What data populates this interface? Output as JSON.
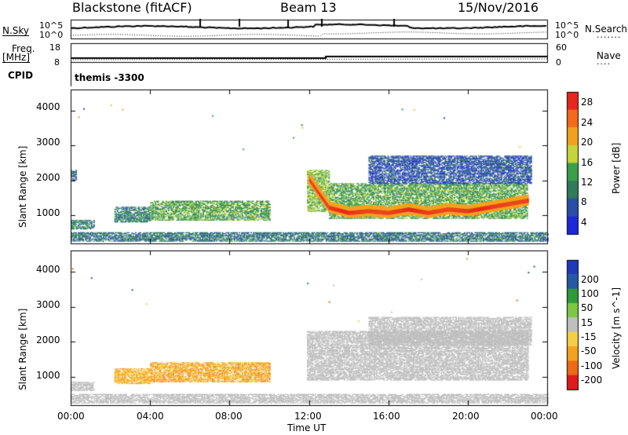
{
  "header": {
    "station": "Blackstone (fitACF)",
    "beam": "Beam 13",
    "date": "15/Nov/2016"
  },
  "top_panels": {
    "nsky_label": "N.Sky",
    "nsky_tick_top": "10^5",
    "nsky_tick_bottom": "10^0",
    "nsearch_label": "N.Search",
    "nsearch_tick_top": "10^5",
    "nsearch_tick_bottom": "10^0",
    "freq_label_1": "Freq.",
    "freq_label_2": "[MHz]",
    "freq_tick_top": "18",
    "freq_tick_bottom": "8",
    "nave_label": "Nave",
    "nave_tick_top": "60",
    "nave_tick_bottom": "0",
    "cpid_label": "CPID",
    "cpid_value": "themis -3300"
  },
  "x_axis": {
    "label": "Time UT",
    "ticks": [
      "00:00",
      "04:00",
      "08:00",
      "12:00",
      "16:00",
      "20:00",
      "00:00"
    ]
  },
  "colors": {
    "power": [
      "#1e28d8",
      "#2a4fa6",
      "#2f7b5c",
      "#3aa04a",
      "#c4d43a",
      "#f0a21e",
      "#f26a1a",
      "#e8281c"
    ],
    "velocity": [
      "#e01b1b",
      "#ee6a16",
      "#f3a21f",
      "#f4cf46",
      "#bfbfbf",
      "#7cc843",
      "#2f9a3c",
      "#245aa4",
      "#1e3cb8"
    ],
    "ground_grey": "#bebebe"
  },
  "chart_data": [
    {
      "type": "heatmap",
      "name": "power",
      "ylabel": "Slant Range [km]",
      "xlabel": "",
      "y_ticks": [
        "1000",
        "2000",
        "3000",
        "4000"
      ],
      "ylim": [
        200,
        4600
      ],
      "xlim_hours": [
        0,
        24
      ],
      "colorbar_label": "Power [dB]",
      "colorbar_ticks": [
        "4",
        "8",
        "12",
        "16",
        "20",
        "24",
        "28"
      ],
      "colorbar_range": [
        0,
        32
      ],
      "regions": [
        {
          "t0": 0.0,
          "t1": 0.25,
          "r0": 2000,
          "r1": 2300,
          "p": 8
        },
        {
          "t0": 0.0,
          "t1": 1.2,
          "r0": 600,
          "r1": 850,
          "p": 10
        },
        {
          "t0": 2.2,
          "t1": 4.0,
          "r0": 800,
          "r1": 1250,
          "p": 10
        },
        {
          "t0": 4.0,
          "t1": 10.0,
          "r0": 850,
          "r1": 1400,
          "p": 14
        },
        {
          "t0": 0.0,
          "t1": 24.0,
          "r0": 250,
          "r1": 500,
          "p": 9
        },
        {
          "t0": 11.9,
          "t1": 13.0,
          "r0": 1100,
          "r1": 2300,
          "p": 16
        },
        {
          "t0": 13.0,
          "t1": 23.0,
          "r0": 900,
          "r1": 1900,
          "p": 14
        },
        {
          "t0": 15.0,
          "t1": 23.2,
          "r0": 1900,
          "r1": 2700,
          "p": 6
        }
      ],
      "ridge_hours": [
        12.0,
        12.5,
        13.0,
        14.0,
        15.0,
        16.0,
        17.0,
        18.0,
        19.0,
        20.0,
        21.0,
        22.0,
        23.0
      ],
      "ridge_range_km": [
        2000,
        1600,
        1200,
        1050,
        1100,
        1050,
        1150,
        1050,
        1150,
        1100,
        1200,
        1300,
        1400
      ]
    },
    {
      "type": "heatmap",
      "name": "velocity",
      "ylabel": "Slant Range [km]",
      "xlabel": "Time UT",
      "y_ticks": [
        "1000",
        "2000",
        "3000",
        "4000"
      ],
      "ylim": [
        200,
        4600
      ],
      "xlim_hours": [
        0,
        24
      ],
      "colorbar_label": "Velocity [m s^-1]",
      "colorbar_ticks": [
        "200",
        "100",
        "50",
        "15",
        "-15",
        "-50",
        "-100",
        "-200"
      ],
      "regions": [
        {
          "t0": 0.0,
          "t1": 1.2,
          "r0": 600,
          "r1": 850,
          "v": 0
        },
        {
          "t0": 2.2,
          "t1": 4.0,
          "r0": 800,
          "r1": 1250,
          "v": -60
        },
        {
          "t0": 4.0,
          "t1": 10.0,
          "r0": 850,
          "r1": 1400,
          "v": -70
        },
        {
          "t0": 0.0,
          "t1": 24.0,
          "r0": 250,
          "r1": 500,
          "v": 0
        },
        {
          "t0": 11.9,
          "t1": 23.0,
          "r0": 900,
          "r1": 2300,
          "v": 0
        },
        {
          "t0": 15.0,
          "t1": 23.2,
          "r0": 1900,
          "r1": 2700,
          "v": 0
        }
      ]
    }
  ]
}
